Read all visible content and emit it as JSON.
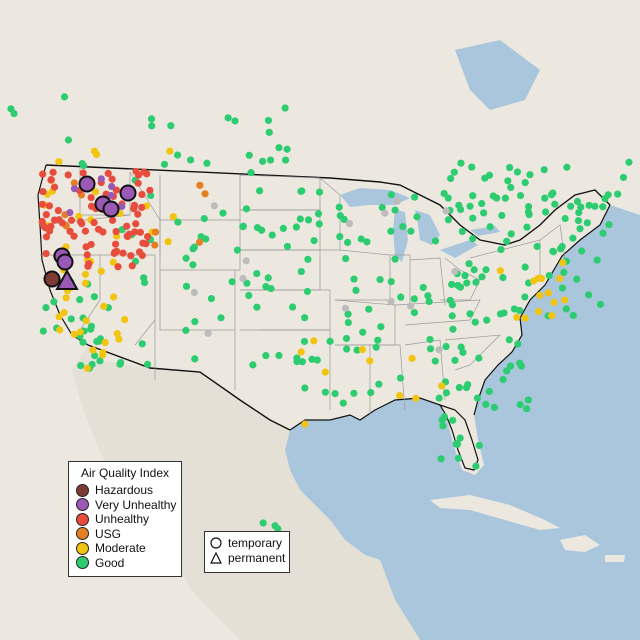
{
  "legend_aqi": {
    "title": "Air Quality Index",
    "items": [
      {
        "label": "Hazardous",
        "color": "#7e3b34"
      },
      {
        "label": "Very Unhealthy",
        "color": "#9b59b6"
      },
      {
        "label": "Unhealthy",
        "color": "#e74c3c"
      },
      {
        "label": "USG",
        "color": "#e67e22"
      },
      {
        "label": "Moderate",
        "color": "#f1c40f"
      },
      {
        "label": "Good",
        "color": "#2ecc71"
      }
    ]
  },
  "legend_type": {
    "items": [
      {
        "label": "temporary",
        "shape": "circle"
      },
      {
        "label": "permanent",
        "shape": "triangle"
      }
    ]
  },
  "colors": {
    "water": "#a9c6dc",
    "land": "#ece8df",
    "no_data_marker": "#bcbcbc",
    "border": "#111111"
  }
}
